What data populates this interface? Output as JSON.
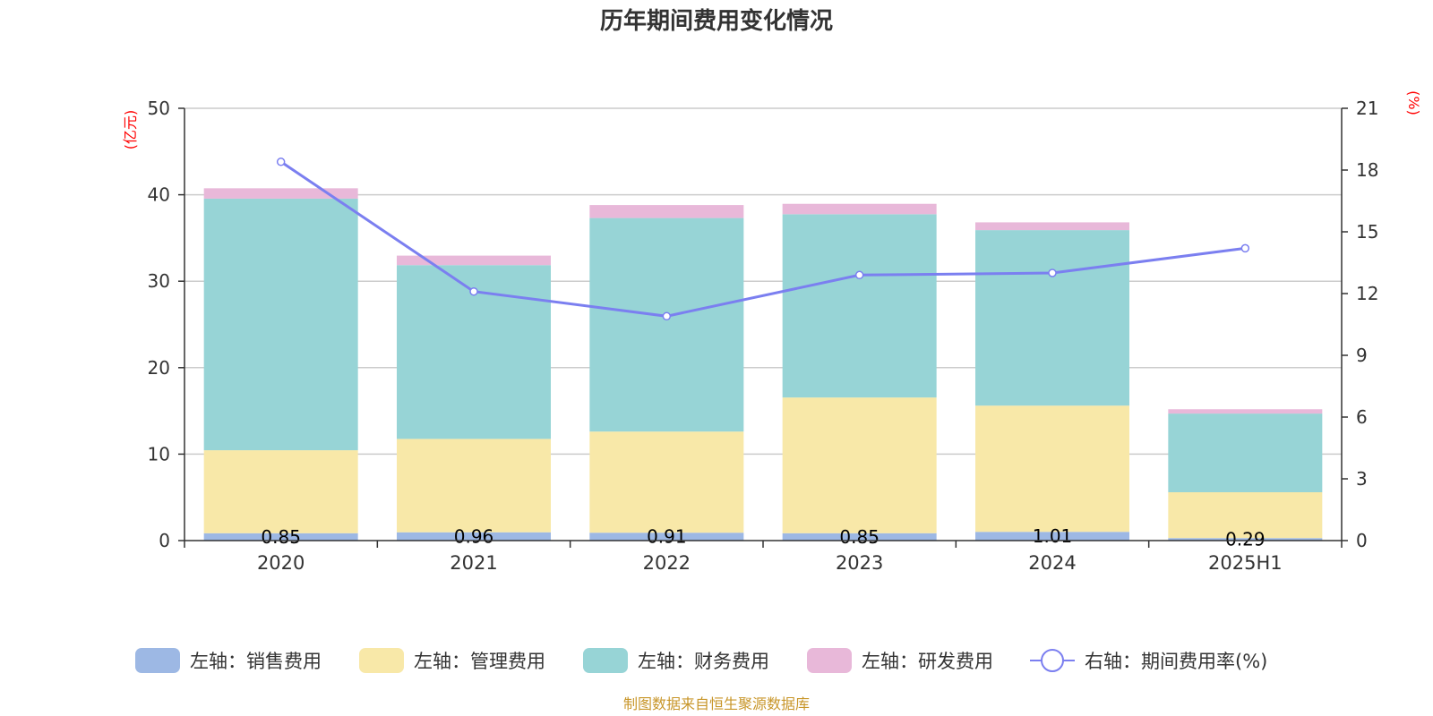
{
  "chart_data": {
    "type": "bar",
    "stacked": true,
    "title": "历年期间费用变化情况",
    "left_unit": "(亿元)",
    "right_unit": "(%)",
    "categories": [
      "2020",
      "2021",
      "2022",
      "2023",
      "2024",
      "2025H1"
    ],
    "ylim": [
      0,
      50
    ],
    "y_ticks": [
      "0",
      "10",
      "20",
      "30",
      "40",
      "50"
    ],
    "y2lim": [
      0,
      21
    ],
    "y2_ticks": [
      "0",
      "3",
      "6",
      "9",
      "12",
      "15",
      "18",
      "21"
    ],
    "grid": true,
    "legend_position": "bottom",
    "series": [
      {
        "name": "左轴：销售费用",
        "axis": "left",
        "color": "#9db8e4",
        "values": [
          0.85,
          0.96,
          0.91,
          0.85,
          1.01,
          0.29
        ],
        "labels": [
          "0.85",
          "0.96",
          "0.91",
          "0.85",
          "1.01",
          "0.29"
        ]
      },
      {
        "name": "左轴：管理费用",
        "axis": "left",
        "color": "#f8e8a8",
        "values": [
          9.6,
          10.8,
          11.7,
          15.7,
          14.6,
          5.3
        ]
      },
      {
        "name": "左轴：财务费用",
        "axis": "left",
        "color": "#97d4d6",
        "values": [
          29.1,
          20.1,
          24.7,
          21.2,
          20.3,
          9.1
        ]
      },
      {
        "name": "左轴：研发费用",
        "axis": "left",
        "color": "#e8b8d9",
        "values": [
          1.2,
          1.1,
          1.5,
          1.2,
          0.9,
          0.5
        ]
      },
      {
        "name": "右轴：期间费用率(%)",
        "axis": "right",
        "type": "line",
        "color": "#7b7ff0",
        "values": [
          18.4,
          12.1,
          10.9,
          12.9,
          13.0,
          14.2
        ]
      }
    ],
    "source": "制图数据来自恒生聚源数据库"
  }
}
